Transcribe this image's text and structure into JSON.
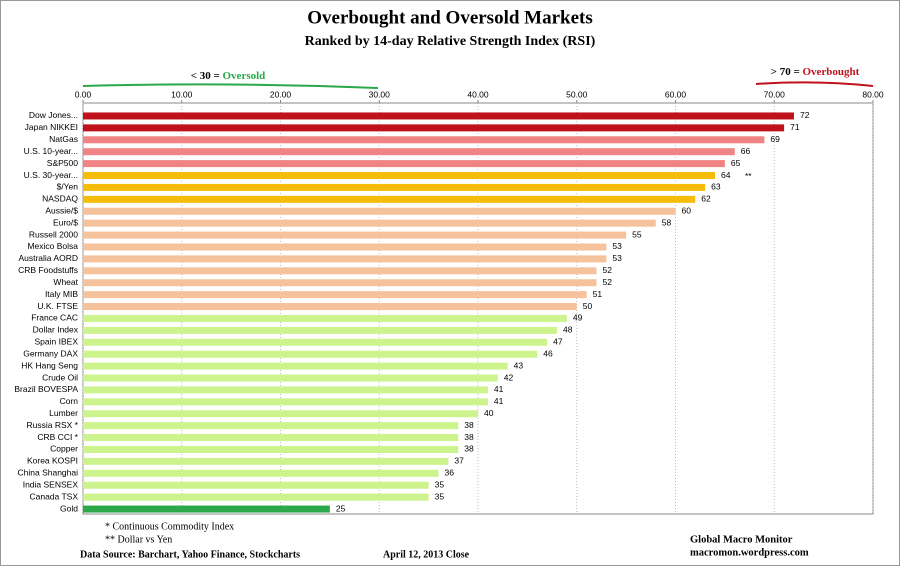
{
  "chart_data": {
    "type": "bar",
    "orientation": "horizontal",
    "title": "Overbought and Oversold Markets",
    "subtitle": "Ranked by 14-day Relative Strength Index (RSI)",
    "oversold_prefix": "< 30 = ",
    "oversold_text": "Oversold",
    "overbought_prefix": "> 70 = ",
    "overbought_text": "Overbought",
    "categories": [
      "Dow Jones...",
      "Japan NIKKEI",
      "NatGas",
      "U.S. 10-year...",
      "S&P500",
      "U.S. 30-year...",
      "$/Yen",
      "NASDAQ",
      "Aussie/$",
      "Euro/$",
      "Russell 2000",
      "Mexico Bolsa",
      "Australia AORD",
      "CRB Foodstuffs",
      "Wheat",
      "Italy  MIB",
      "U.K. FTSE",
      "France CAC",
      "Dollar Index",
      "Spain IBEX",
      "Germany DAX",
      "HK  Hang Seng",
      "Crude Oil",
      "Brazil BOVESPA",
      "Corn",
      "Lumber",
      "Russia RSX *",
      "CRB CCI *",
      "Copper",
      "Korea KOSPI",
      "China Shanghai",
      "India SENSEX",
      "Canada TSX",
      "Gold"
    ],
    "values": [
      72,
      71,
      69,
      66,
      65,
      64,
      63,
      62,
      60,
      58,
      55,
      53,
      53,
      52,
      52,
      51,
      50,
      49,
      48,
      47,
      46,
      43,
      42,
      41,
      41,
      40,
      38,
      38,
      38,
      37,
      36,
      35,
      35,
      25
    ],
    "colors": [
      "#c0121c",
      "#c0121c",
      "#f08383",
      "#f08383",
      "#f08383",
      "#f5bd0a",
      "#f5bd0a",
      "#f5bd0a",
      "#f6c29c",
      "#f6c29c",
      "#f6c29c",
      "#f6c29c",
      "#f6c29c",
      "#f6c29c",
      "#f6c29c",
      "#f6c29c",
      "#f6c29c",
      "#ccf38c",
      "#ccf38c",
      "#ccf38c",
      "#ccf38c",
      "#ccf38c",
      "#ccf38c",
      "#ccf38c",
      "#ccf38c",
      "#ccf38c",
      "#ccf38c",
      "#ccf38c",
      "#ccf38c",
      "#ccf38c",
      "#ccf38c",
      "#ccf38c",
      "#ccf38c",
      "#2aa84a"
    ],
    "notes": [
      null,
      null,
      null,
      null,
      null,
      "**",
      null,
      null,
      null,
      null,
      null,
      null,
      null,
      null,
      null,
      null,
      null,
      null,
      null,
      null,
      null,
      null,
      null,
      null,
      null,
      null,
      null,
      null,
      null,
      null,
      null,
      null,
      null,
      null
    ],
    "xlim": [
      0,
      80
    ],
    "xticks": [
      {
        "value": 0,
        "label": "0.00"
      },
      {
        "value": 10,
        "label": "10.00"
      },
      {
        "value": 20,
        "label": "20.00"
      },
      {
        "value": 30,
        "label": "30.00"
      },
      {
        "value": 40,
        "label": "40.00"
      },
      {
        "value": 50,
        "label": "50.00"
      },
      {
        "value": 60,
        "label": "60.00"
      },
      {
        "value": 70,
        "label": "70.00"
      },
      {
        "value": 80,
        "label": "80.00"
      }
    ],
    "grid": true,
    "footnotes": [
      "* Continuous Commodity Index",
      "** Dollar vs Yen"
    ],
    "source": "Data Source:  Barchart,  Yahoo Finance, Stockcharts",
    "date": "April 12, 2013  Close",
    "brand": "Global Macro Monitor",
    "website": "macromon.wordpress.com"
  }
}
